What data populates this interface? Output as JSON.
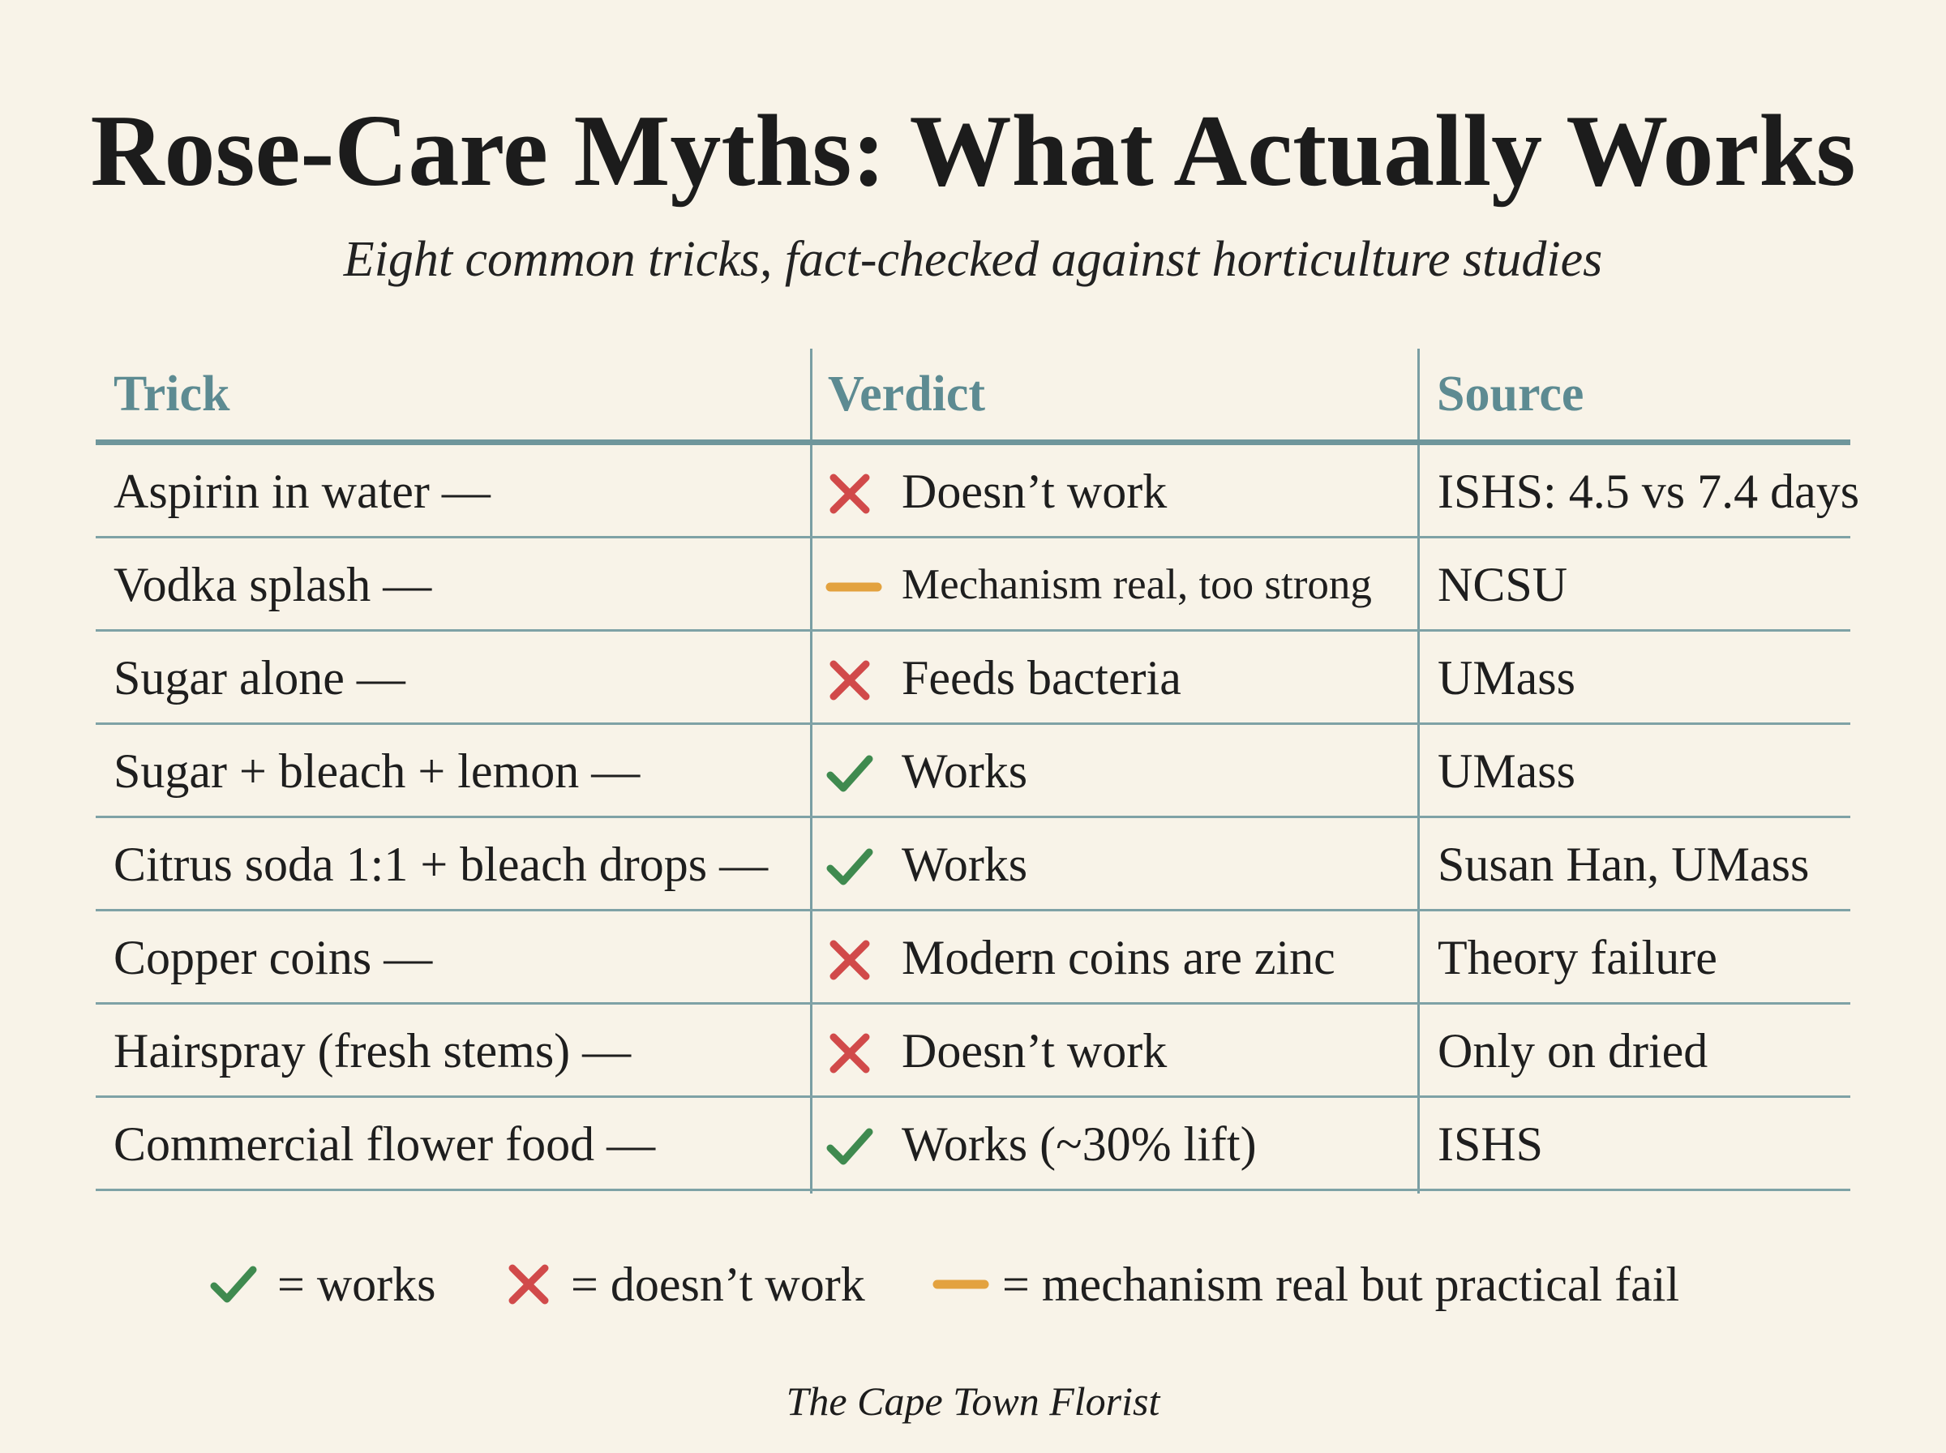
{
  "title": "Rose-Care Myths: What Actually Works",
  "subtitle": "Eight common tricks, fact-checked against horticulture studies",
  "colors": {
    "background": "#f8f3e8",
    "header_text": "#5d8b92",
    "rule": "#7fa2a6",
    "works": "#3f8a4f",
    "fails": "#d14a4a",
    "partial": "#e3a23f"
  },
  "table": {
    "headers": {
      "trick": "Trick",
      "verdict": "Verdict",
      "source": "Source"
    },
    "rows": [
      {
        "trick": "Aspirin in water —",
        "verdict_icon": "cross-icon",
        "verdict": "Doesn’t work",
        "source": "ISHS: 4.5 vs 7.4 days"
      },
      {
        "trick": "Vodka splash —",
        "verdict_icon": "dash-icon",
        "verdict": "Mechanism real, too strong",
        "source": "NCSU"
      },
      {
        "trick": "Sugar alone —",
        "verdict_icon": "cross-icon",
        "verdict": "Feeds bacteria",
        "source": "UMass"
      },
      {
        "trick": "Sugar + bleach + lemon —",
        "verdict_icon": "check-icon",
        "verdict": "Works",
        "source": "UMass"
      },
      {
        "trick": "Citrus soda 1:1 + bleach drops —",
        "verdict_icon": "check-icon",
        "verdict": "Works",
        "source": "Susan Han, UMass"
      },
      {
        "trick": "Copper coins —",
        "verdict_icon": "cross-icon",
        "verdict": "Modern coins are zinc",
        "source": "Theory failure"
      },
      {
        "trick": "Hairspray (fresh stems) —",
        "verdict_icon": "cross-icon",
        "verdict": "Doesn’t work",
        "source": "Only on dried"
      },
      {
        "trick": "Commercial flower food —",
        "verdict_icon": "check-icon",
        "verdict": "Works (~30% lift)",
        "source": "ISHS"
      }
    ]
  },
  "legend": {
    "works": "= works",
    "fails": "= doesn’t work",
    "partial": "= mechanism real but practical fail"
  },
  "footer": "The Cape Town Florist"
}
